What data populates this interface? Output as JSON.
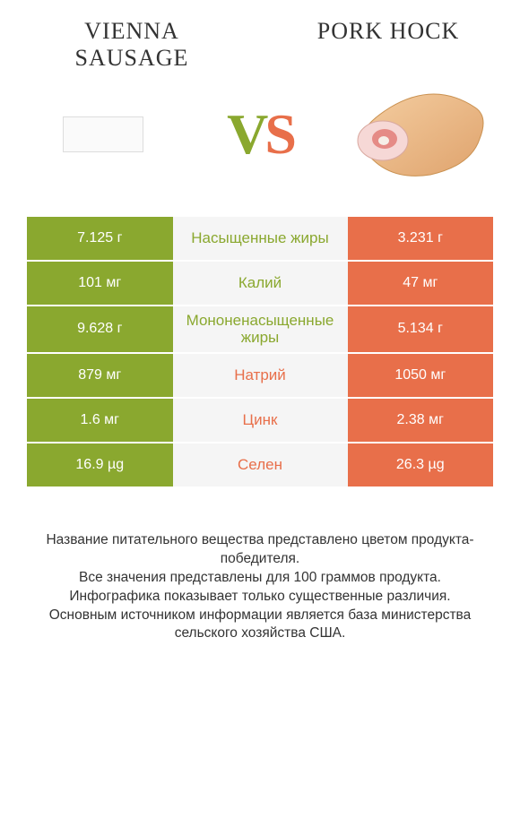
{
  "colors": {
    "green": "#8aa82f",
    "orange": "#e86f4a",
    "mid_bg": "#f5f5f5",
    "text": "#333333"
  },
  "header": {
    "left_title": "Vienna sausage",
    "right_title": "Pork hock"
  },
  "vs": {
    "v": "V",
    "s": "S"
  },
  "rows": [
    {
      "left": "7.125 г",
      "mid": "Насыщенные жиры",
      "right": "3.231 г",
      "winner": "left"
    },
    {
      "left": "101 мг",
      "mid": "Калий",
      "right": "47 мг",
      "winner": "left"
    },
    {
      "left": "9.628 г",
      "mid": "Мононенасыщенные жиры",
      "right": "5.134 г",
      "winner": "left"
    },
    {
      "left": "879 мг",
      "mid": "Натрий",
      "right": "1050 мг",
      "winner": "right"
    },
    {
      "left": "1.6 мг",
      "mid": "Цинк",
      "right": "2.38 мг",
      "winner": "right"
    },
    {
      "left": "16.9 µg",
      "mid": "Селен",
      "right": "26.3 µg",
      "winner": "right"
    }
  ],
  "footer": {
    "line1": "Название питательного вещества представлено цветом продукта-победителя.",
    "line2": "Все значения представлены для 100 граммов продукта.",
    "line3": "Инфографика показывает только существенные различия.",
    "line4": "Основным источником информации является база министерства сельского хозяйства США."
  }
}
